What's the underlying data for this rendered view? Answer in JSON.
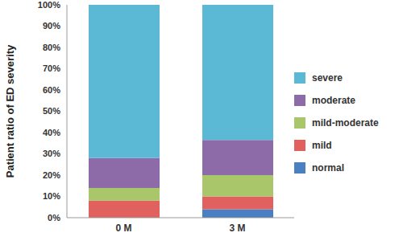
{
  "chart_data": {
    "type": "bar",
    "stacked": true,
    "y_label": "Patient ratio of ED severity",
    "categories": [
      "0 M",
      "3 M"
    ],
    "series": [
      {
        "name": "normal",
        "color": "#4a7fc1",
        "values": [
          0,
          4
        ]
      },
      {
        "name": "mild",
        "color": "#e0615d",
        "values": [
          8,
          6
        ]
      },
      {
        "name": "mild-moderate",
        "color": "#a9c66b",
        "values": [
          6,
          10
        ]
      },
      {
        "name": "moderate",
        "color": "#8d6aa8",
        "values": [
          14,
          16.5
        ]
      },
      {
        "name": "severe",
        "color": "#5bb9d5",
        "values": [
          72,
          63.5
        ]
      }
    ],
    "ylim": [
      0,
      100
    ],
    "yticks": [
      {
        "value": 0,
        "label": "0%"
      },
      {
        "value": 10,
        "label": "10%"
      },
      {
        "value": 20,
        "label": "20%"
      },
      {
        "value": 30,
        "label": "30%"
      },
      {
        "value": 40,
        "label": "40%"
      },
      {
        "value": 50,
        "label": "50%"
      },
      {
        "value": 60,
        "label": "60%"
      },
      {
        "value": 70,
        "label": "70%"
      },
      {
        "value": 80,
        "label": "80%"
      },
      {
        "value": 90,
        "label": "90%"
      },
      {
        "value": 100,
        "label": "100%"
      }
    ],
    "grid": false,
    "legend": "right"
  }
}
